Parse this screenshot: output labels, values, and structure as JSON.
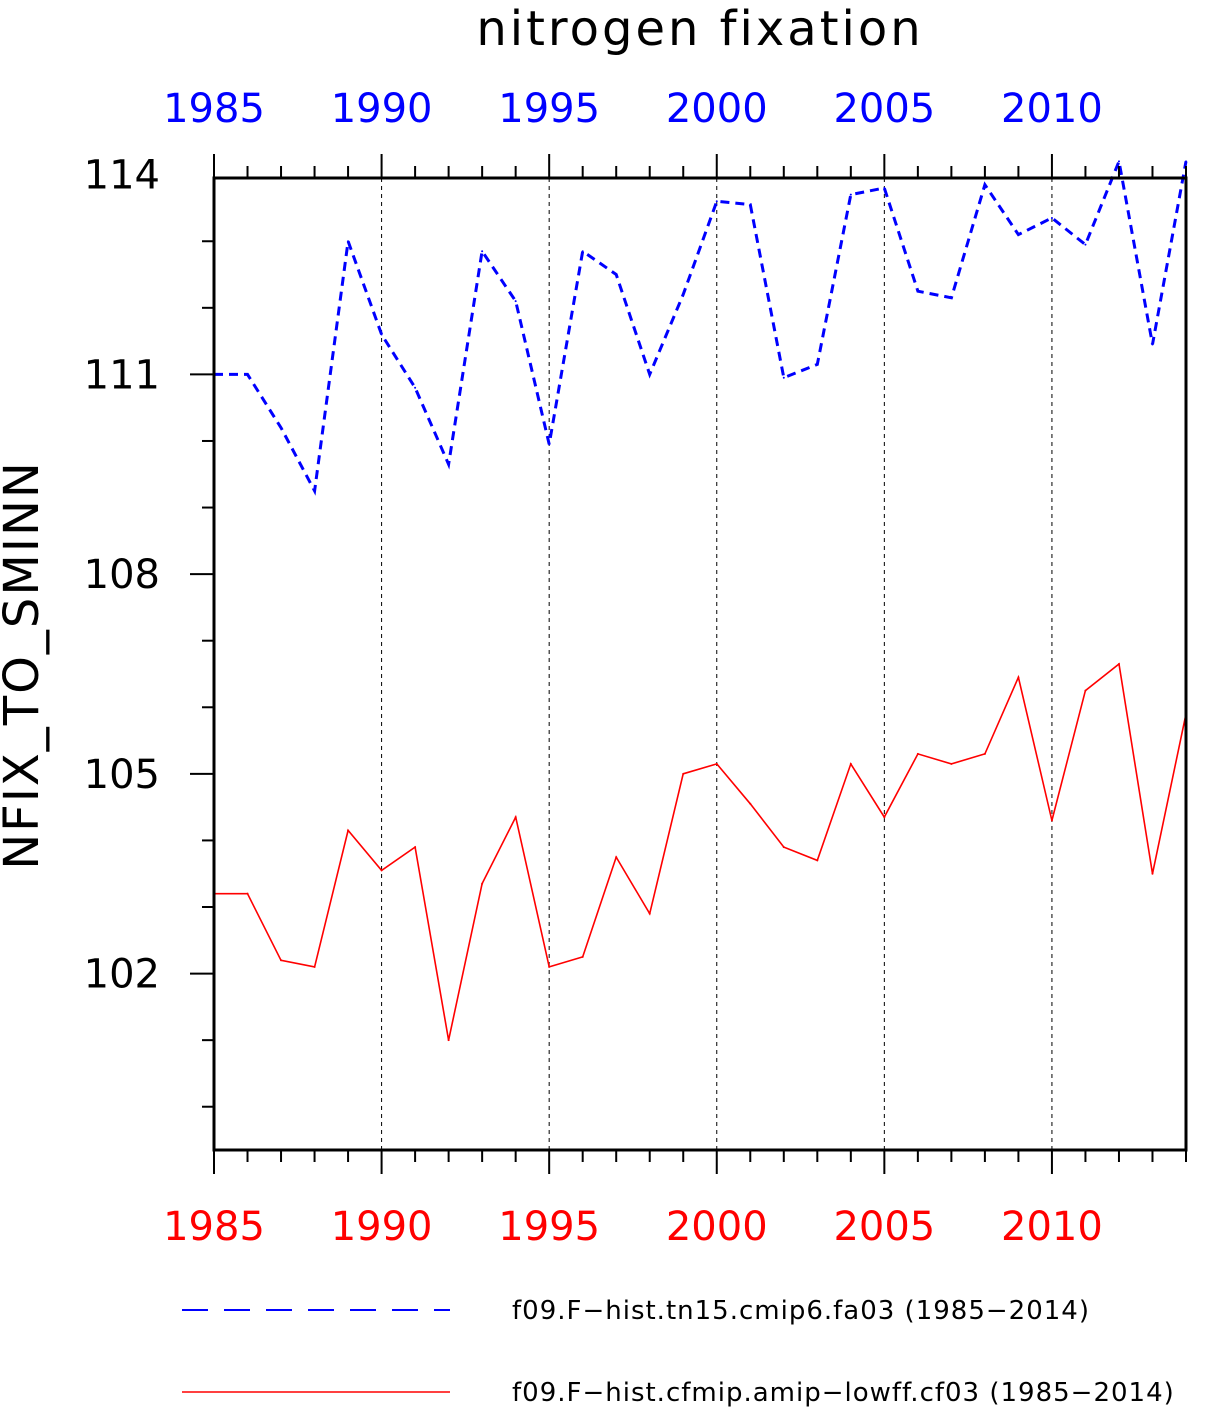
{
  "chart_data": {
    "type": "line",
    "title": "nitrogen fixation",
    "xlabel": "",
    "ylabel": "NFIX_TO_SMINN",
    "xlim": [
      1985,
      2014
    ],
    "ylim": [
      99.35,
      113.95
    ],
    "yticks": [
      102,
      105,
      108,
      111,
      114
    ],
    "ytick_labels": [
      "102",
      "105",
      "108",
      "111",
      "114"
    ],
    "xticks": [
      1985,
      1990,
      1995,
      2000,
      2005,
      2010
    ],
    "xtick_labels": [
      "1985",
      "1990",
      "1995",
      "2000",
      "2005",
      "2010"
    ],
    "grid": "vertical dashed lines at major x ticks",
    "legend_position": "bottom",
    "x": [
      1985,
      1986,
      1987,
      1988,
      1989,
      1990,
      1991,
      1992,
      1993,
      1994,
      1995,
      1996,
      1997,
      1998,
      1999,
      2000,
      2001,
      2002,
      2003,
      2004,
      2005,
      2006,
      2007,
      2008,
      2009,
      2010,
      2011,
      2012,
      2013,
      2014
    ],
    "series": [
      {
        "name": "f09.F−hist.tn15.cmip6.fa03 (1985−2014)",
        "color": "#0000ff",
        "style": "dashed",
        "values": [
          111.0,
          111.0,
          110.2,
          109.25,
          113.0,
          111.6,
          110.8,
          109.65,
          112.85,
          112.1,
          109.95,
          112.85,
          112.5,
          111.0,
          112.2,
          113.6,
          113.55,
          110.95,
          111.15,
          113.7,
          113.8,
          112.25,
          112.15,
          113.85,
          113.1,
          113.35,
          112.95,
          114.2,
          111.45,
          114.2
        ]
      },
      {
        "name": "f09.F−hist.cfmip.amip−lowff.cf03 (1985−2014)",
        "color": "#ff0000",
        "style": "solid",
        "values": [
          103.2,
          103.2,
          102.2,
          102.1,
          104.15,
          103.55,
          103.9,
          101.0,
          103.35,
          104.35,
          102.1,
          102.25,
          103.75,
          102.9,
          105.0,
          105.15,
          104.55,
          103.9,
          103.7,
          105.15,
          104.35,
          105.3,
          105.15,
          105.3,
          106.45,
          104.3,
          106.25,
          106.65,
          103.5,
          105.9
        ]
      }
    ]
  }
}
